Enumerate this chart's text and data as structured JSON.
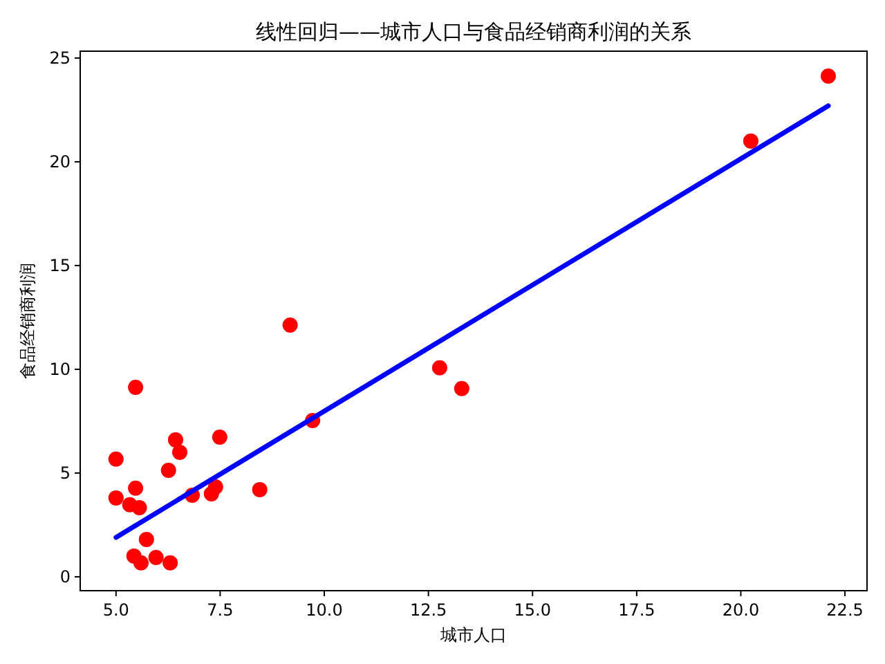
{
  "chart_data": {
    "type": "scatter",
    "title": "线性回归——城市人口与食品经销商利润的关系",
    "xlabel": "城市人口",
    "ylabel": "食品经销商利润",
    "xlim": [
      4.14,
      23.03
    ],
    "ylim": [
      -0.67,
      25.33
    ],
    "xticks": [
      {
        "value": 5,
        "label": "5.0"
      },
      {
        "value": 7.5,
        "label": "7.5"
      },
      {
        "value": 10,
        "label": "10.0"
      },
      {
        "value": 12.5,
        "label": "12.5"
      },
      {
        "value": 15,
        "label": "15.0"
      },
      {
        "value": 17.5,
        "label": "17.5"
      },
      {
        "value": 20,
        "label": "20.0"
      },
      {
        "value": 22.5,
        "label": "22.5"
      }
    ],
    "yticks": [
      0,
      5,
      10,
      15,
      20,
      25
    ],
    "grid": false,
    "series": [
      {
        "color": "#ff0000",
        "marker": "circle",
        "x": [
          5.0,
          5.0,
          5.47,
          5.33,
          5.47,
          5.56,
          5.43,
          5.6,
          5.73,
          5.96,
          6.3,
          6.26,
          6.43,
          6.53,
          6.83,
          7.29,
          7.39,
          7.49,
          8.45,
          9.18,
          9.72,
          12.77,
          13.3,
          20.24,
          22.1
        ],
        "values": [
          5.67,
          3.8,
          4.27,
          3.47,
          9.13,
          3.33,
          1.0,
          0.67,
          1.8,
          0.93,
          0.67,
          5.13,
          6.6,
          6.0,
          3.93,
          4.0,
          4.33,
          6.73,
          4.2,
          12.13,
          7.53,
          10.07,
          9.07,
          21.0,
          24.13
        ]
      },
      {
        "type": "line",
        "color": "#0000ff",
        "line_style": "solid",
        "x": [
          5.0,
          22.1
        ],
        "values": [
          1.9,
          22.7
        ]
      }
    ]
  }
}
